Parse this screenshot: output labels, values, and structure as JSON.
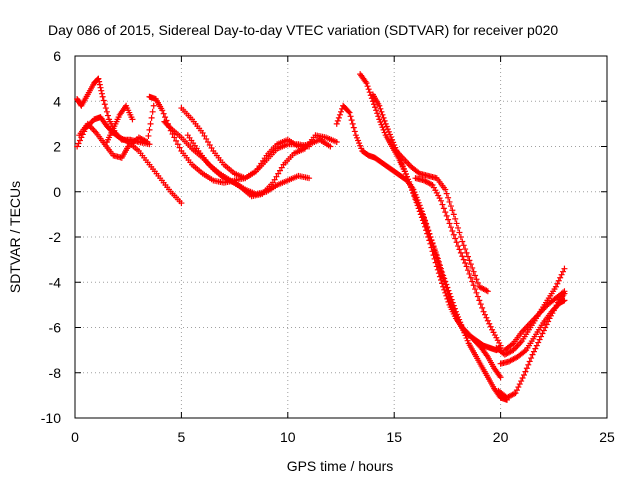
{
  "chart_data": {
    "type": "scatter",
    "title": "Day 086 of 2015, Sidereal Day-to-day VTEC variation (SDTVAR) for receiver p020",
    "xlabel": "GPS time / hours",
    "ylabel": "SDTVAR / TECUs",
    "xlim": [
      0,
      25
    ],
    "ylim": [
      -10,
      6
    ],
    "xticks": [
      0,
      5,
      10,
      15,
      20,
      25
    ],
    "yticks": [
      -10,
      -8,
      -6,
      -4,
      -2,
      0,
      2,
      4,
      6
    ],
    "xtick_labels": [
      "0",
      "5",
      "10",
      "15",
      "20",
      "25"
    ],
    "ytick_labels": [
      "-10",
      "-8",
      "-6",
      "-4",
      "-2",
      "0",
      "2",
      "4",
      "6"
    ],
    "grid": true,
    "grid_style": "dotted",
    "marker": "+",
    "color": "#ff0000",
    "series": [
      {
        "x": [
          0.1,
          0.5,
          0.9,
          1.2,
          1.5,
          1.8,
          2.1,
          2.5,
          3.0,
          3.5,
          4.0,
          4.5,
          5.0
        ],
        "y": [
          2.0,
          2.8,
          3.2,
          3.3,
          2.9,
          2.6,
          2.4,
          2.2,
          1.8,
          1.2,
          0.6,
          0.0,
          -0.5
        ]
      },
      {
        "x": [
          0.1,
          0.3,
          0.6,
          0.9,
          1.1,
          1.3,
          1.6,
          1.9,
          2.2,
          2.6,
          3.0,
          3.5
        ],
        "y": [
          4.1,
          3.8,
          4.3,
          4.8,
          5.0,
          4.2,
          3.2,
          2.6,
          2.3,
          2.3,
          2.2,
          2.1
        ]
      },
      {
        "x": [
          0.2,
          0.6,
          1.0,
          1.4,
          1.8,
          2.2,
          2.5,
          3.0,
          3.4,
          3.7
        ],
        "y": [
          2.5,
          3.0,
          2.6,
          2.1,
          1.6,
          1.5,
          2.0,
          2.4,
          2.2,
          3.8
        ]
      },
      {
        "x": [
          1.5,
          1.8,
          2.1,
          2.4,
          2.7
        ],
        "y": [
          2.2,
          2.8,
          3.4,
          3.8,
          3.2
        ]
      },
      {
        "x": [
          3.5,
          3.8,
          4.1,
          4.5,
          5.0,
          5.5,
          6.0,
          6.5,
          7.0,
          7.5,
          8.0,
          8.5,
          9.0,
          9.5,
          10.0,
          10.5,
          11.0
        ],
        "y": [
          4.2,
          4.1,
          3.6,
          2.7,
          1.8,
          1.2,
          0.8,
          0.5,
          0.4,
          0.5,
          0.6,
          0.9,
          1.4,
          1.9,
          2.1,
          2.1,
          2.0
        ]
      },
      {
        "x": [
          4.2,
          4.5,
          5.0,
          5.5,
          6.0,
          6.5,
          7.0,
          7.5,
          8.0,
          8.5,
          9.0,
          9.5,
          10.0,
          10.5,
          11.0
        ],
        "y": [
          3.1,
          2.8,
          2.4,
          1.9,
          1.5,
          1.0,
          0.6,
          0.4,
          0.1,
          -0.1,
          0.0,
          0.3,
          0.5,
          0.7,
          0.6
        ]
      },
      {
        "x": [
          5.0,
          5.5,
          6.0,
          6.5,
          7.0,
          7.5,
          8.0,
          8.5,
          9.0,
          9.5,
          10.0,
          10.5,
          11.0,
          11.5,
          12.0
        ],
        "y": [
          3.7,
          3.2,
          2.6,
          1.8,
          1.2,
          0.8,
          0.6,
          0.9,
          1.6,
          2.1,
          2.3,
          2.0,
          2.1,
          2.3,
          2.0
        ]
      },
      {
        "x": [
          5.3,
          5.8,
          6.3,
          6.8,
          7.3,
          7.8,
          8.3,
          8.8,
          9.3,
          9.8,
          10.3,
          10.8,
          11.3,
          11.8,
          12.3
        ],
        "y": [
          2.5,
          1.8,
          1.2,
          0.8,
          0.5,
          0.2,
          -0.2,
          -0.1,
          0.4,
          1.2,
          1.7,
          1.9,
          2.5,
          2.4,
          2.2
        ]
      },
      {
        "x": [
          12.3,
          12.6,
          12.9,
          13.2,
          13.5,
          13.8,
          14.1,
          14.4,
          14.7,
          15.0,
          15.3,
          15.6,
          15.9,
          16.2,
          16.5,
          16.8,
          17.1,
          17.4,
          17.7,
          18.0,
          18.3,
          18.6,
          18.9,
          19.2,
          19.5,
          19.8,
          20.0
        ],
        "y": [
          3.0,
          3.8,
          3.5,
          2.5,
          1.8,
          1.6,
          1.5,
          1.3,
          1.1,
          0.9,
          0.7,
          0.5,
          0.1,
          -0.6,
          -1.4,
          -2.3,
          -3.2,
          -4.1,
          -5.0,
          -5.7,
          -6.2,
          -6.4,
          -6.6,
          -6.8,
          -6.9,
          -7.0,
          -6.9
        ]
      },
      {
        "x": [
          13.4,
          13.7,
          14.0,
          14.3,
          14.6,
          14.9,
          15.2,
          15.5,
          15.8,
          16.1,
          16.4,
          16.7,
          17.0,
          17.3,
          17.6,
          17.9,
          18.2,
          18.5,
          18.8,
          19.1,
          19.4,
          19.7,
          20.0
        ],
        "y": [
          5.2,
          4.8,
          4.0,
          3.2,
          2.5,
          2.0,
          1.5,
          0.9,
          0.2,
          -0.6,
          -1.4,
          -2.3,
          -3.3,
          -4.2,
          -5.0,
          -5.6,
          -6.0,
          -6.3,
          -6.6,
          -6.9,
          -7.3,
          -7.8,
          -8.2
        ]
      },
      {
        "x": [
          14.0,
          14.3,
          14.6,
          14.9,
          15.2,
          15.5,
          15.8,
          16.1,
          16.4,
          16.7,
          17.0,
          17.3,
          17.6,
          17.9,
          18.2,
          18.5,
          18.8,
          19.1,
          19.4,
          19.7,
          20.0,
          20.3
        ],
        "y": [
          4.3,
          3.8,
          3.0,
          2.3,
          1.6,
          0.9,
          0.2,
          -0.5,
          -1.2,
          -2.0,
          -2.8,
          -3.7,
          -4.5,
          -5.3,
          -6.0,
          -6.7,
          -7.2,
          -7.7,
          -8.2,
          -8.7,
          -9.1,
          -9.2
        ]
      },
      {
        "x": [
          15.0,
          15.4,
          15.8,
          16.2,
          16.6,
          17.0,
          17.4,
          17.8,
          18.2,
          18.6,
          19.0,
          19.4
        ],
        "y": [
          1.9,
          1.5,
          1.1,
          0.8,
          0.7,
          0.6,
          0.1,
          -1.0,
          -2.2,
          -3.2,
          -4.2,
          -4.4
        ]
      },
      {
        "x": [
          16.0,
          16.4,
          16.8,
          17.2,
          17.6,
          18.0,
          18.4,
          18.8,
          19.2,
          19.6,
          20.0
        ],
        "y": [
          0.6,
          0.5,
          0.3,
          -0.4,
          -1.4,
          -2.4,
          -3.3,
          -4.3,
          -5.3,
          -6.1,
          -6.8
        ]
      },
      {
        "x": [
          19.8,
          20.2,
          20.6,
          21.0,
          21.4,
          21.8,
          22.2,
          22.6,
          23.0
        ],
        "y": [
          -6.9,
          -7.2,
          -7.0,
          -6.6,
          -6.0,
          -5.4,
          -4.8,
          -4.2,
          -3.4
        ]
      },
      {
        "x": [
          19.9,
          20.3,
          20.7,
          21.1,
          21.5,
          21.9,
          22.3,
          22.7,
          23.0
        ],
        "y": [
          -8.8,
          -9.1,
          -8.9,
          -8.1,
          -7.2,
          -6.4,
          -5.6,
          -4.9,
          -4.5
        ]
      },
      {
        "x": [
          20.0,
          20.4,
          20.8,
          21.2,
          21.6,
          22.0,
          22.4,
          22.8,
          23.0
        ],
        "y": [
          -7.6,
          -7.5,
          -7.3,
          -7.0,
          -6.4,
          -5.8,
          -5.3,
          -4.9,
          -4.8
        ]
      },
      {
        "x": [
          20.2,
          20.6,
          21.0,
          21.4,
          21.8,
          22.2,
          22.6,
          23.0
        ],
        "y": [
          -7.0,
          -6.7,
          -6.2,
          -5.8,
          -5.4,
          -5.0,
          -4.7,
          -4.4
        ]
      }
    ]
  }
}
